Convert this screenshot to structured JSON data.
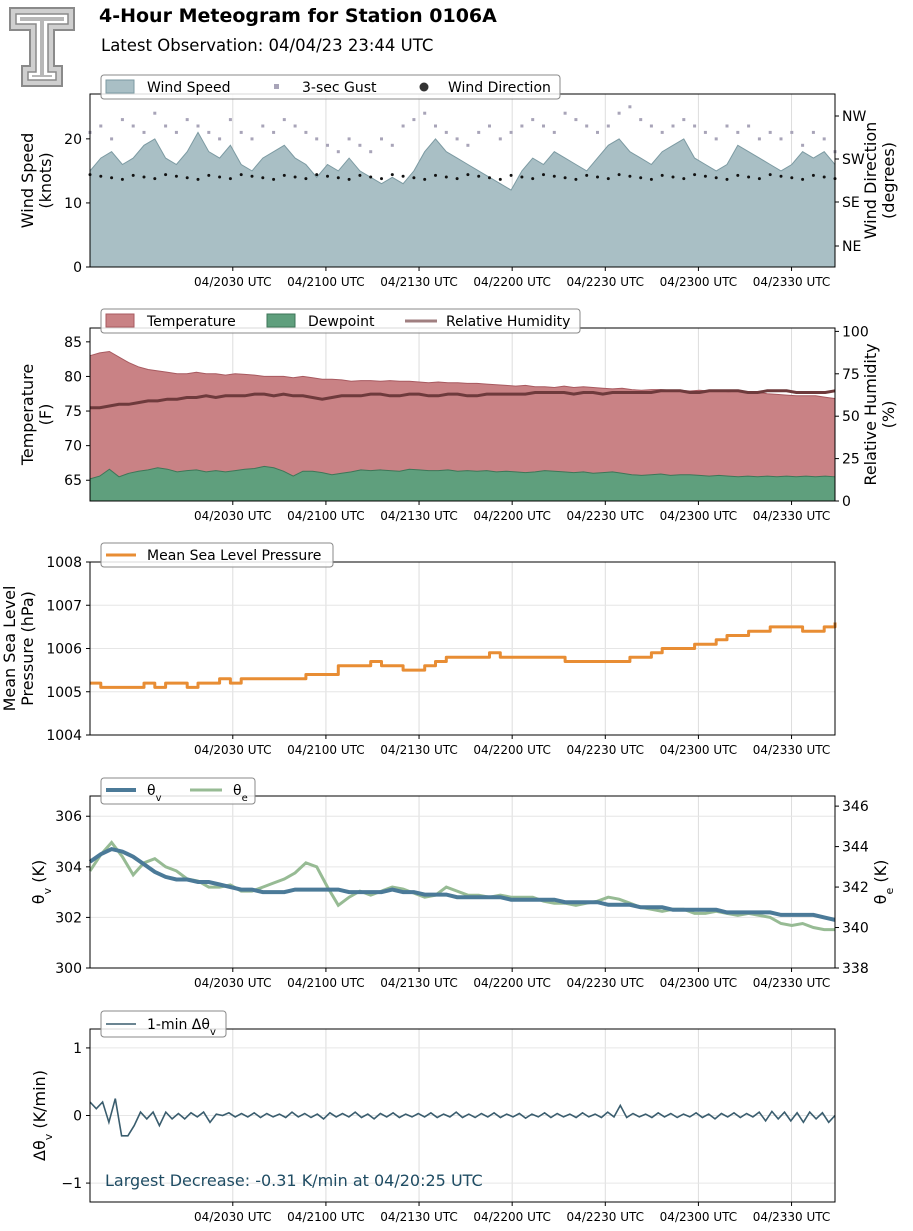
{
  "header": {
    "title": "4-Hour Meteogram for Station 0106A",
    "subtitle": "Latest Observation: 04/04/23 23:44 UTC"
  },
  "colors": {
    "wind_fill": "#a9bfc5",
    "wind_edge": "#7c9aa2",
    "gust": "#a8a4b8",
    "direction": "#111111",
    "temp_fill": "#c98285",
    "temp_edge": "#a85a60",
    "dew_fill": "#5f9f7d",
    "dew_edge": "#3e7658",
    "rh": "#6e3a3c",
    "rh_legend": "#a07f80",
    "pressure": "#e88d34",
    "theta_v": "#4b7a98",
    "theta_e": "#97bb94",
    "dtheta": "#3a5d6e",
    "annotation": "#1f4c63"
  },
  "chart_data": [
    {
      "type": "area",
      "panel": "wind",
      "x_ticks": [
        "04/2030 UTC",
        "04/2100 UTC",
        "04/2130 UTC",
        "04/2200 UTC",
        "04/2230 UTC",
        "04/2300 UTC",
        "04/2330 UTC"
      ],
      "x_range_utc": [
        "19:44",
        "23:44"
      ],
      "ylabel": "Wind Speed\n(knots)",
      "ylim": [
        0,
        27
      ],
      "yticks": [
        "0",
        "10",
        "20"
      ],
      "y2label": "Wind Direction\n(degrees)",
      "y2_ticks": [
        "NE",
        "SE",
        "SW",
        "NW"
      ],
      "legend": [
        "Wind Speed",
        "3-sec Gust",
        "Wind Direction"
      ],
      "legend_position": "top-left",
      "series": [
        {
          "name": "Wind Speed",
          "kind": "area",
          "unit": "knots",
          "step_minutes": 5,
          "values": [
            15,
            17,
            18,
            16,
            17,
            19,
            20,
            17,
            16,
            18,
            21,
            18,
            17,
            19,
            16,
            15,
            17,
            18,
            19,
            17,
            16,
            14,
            16,
            15,
            17,
            15,
            14,
            13,
            14,
            13,
            15,
            18,
            20,
            18,
            17,
            16,
            15,
            14,
            13,
            12,
            15,
            17,
            16,
            18,
            17,
            16,
            15,
            17,
            19,
            20,
            18,
            17,
            16,
            18,
            19,
            20,
            17,
            16,
            15,
            16,
            19,
            18,
            17,
            16,
            15,
            16,
            18,
            17,
            18,
            16
          ]
        },
        {
          "name": "3-sec Gust",
          "kind": "points",
          "unit": "knots",
          "step_minutes": 5,
          "values": [
            21,
            22,
            20,
            23,
            22,
            21,
            24,
            22,
            21,
            23,
            22,
            21,
            20,
            23,
            21,
            20,
            22,
            21,
            23,
            22,
            21,
            20,
            19,
            18,
            20,
            19,
            18,
            20,
            19,
            22,
            23,
            24,
            22,
            21,
            20,
            19,
            21,
            22,
            20,
            21,
            22,
            23,
            22,
            21,
            24,
            23,
            22,
            21,
            22,
            24,
            25,
            23,
            22,
            21,
            22,
            23,
            22,
            21,
            20,
            22,
            21,
            22,
            20,
            21,
            20,
            21,
            19,
            21,
            20,
            18
          ]
        },
        {
          "name": "Wind Direction",
          "kind": "points",
          "unit": "compass",
          "step_minutes": 5,
          "values": [
            "S",
            "S",
            "S",
            "S",
            "S",
            "S",
            "S",
            "S",
            "S",
            "S",
            "S",
            "S",
            "S",
            "S",
            "S",
            "S",
            "S",
            "S",
            "S",
            "S",
            "S",
            "S",
            "S",
            "S",
            "S",
            "S",
            "S",
            "S",
            "S",
            "S",
            "S",
            "S",
            "S",
            "S",
            "S",
            "S",
            "S",
            "S",
            "S",
            "S",
            "S",
            "S",
            "S",
            "S",
            "S",
            "S",
            "S",
            "S",
            "S",
            "S",
            "S",
            "S",
            "S",
            "S",
            "S",
            "S",
            "S",
            "S",
            "S",
            "S",
            "S",
            "S",
            "S",
            "S",
            "S",
            "S",
            "S",
            "S",
            "S",
            "S"
          ]
        }
      ]
    },
    {
      "type": "area",
      "panel": "temperature",
      "x_ticks": [
        "04/2030 UTC",
        "04/2100 UTC",
        "04/2130 UTC",
        "04/2200 UTC",
        "04/2230 UTC",
        "04/2300 UTC",
        "04/2330 UTC"
      ],
      "ylabel": "Temperature\n(F)",
      "ylim": [
        62,
        87
      ],
      "yticks": [
        "65",
        "70",
        "75",
        "80",
        "85"
      ],
      "y2label": "Relative Humidity\n(%)",
      "y2lim": [
        0,
        102
      ],
      "y2ticks": [
        "0",
        "25",
        "50",
        "75",
        "100"
      ],
      "legend": [
        "Temperature",
        "Dewpoint",
        "Relative Humidity"
      ],
      "legend_position": "top-left",
      "series": [
        {
          "name": "Temperature",
          "unit": "F",
          "step_minutes": 10,
          "values": [
            83,
            83.4,
            83.6,
            82.8,
            82,
            81.4,
            81,
            80.8,
            80.6,
            80.4,
            80.4,
            80.6,
            80.4,
            80.4,
            80.2,
            80.4,
            80.3,
            80.2,
            80,
            80,
            80,
            79.8,
            80,
            79.8,
            79.6,
            79.6,
            79.5,
            79.3,
            79.4,
            79.4,
            79.3,
            79.4,
            79.3,
            79.3,
            79.2,
            79.1,
            79.2,
            79.1,
            79.1,
            79,
            79,
            78.9,
            78.8,
            78.7,
            78.6,
            78.7,
            78.5,
            78.5,
            78.4,
            78.6,
            78.4,
            78.5,
            78.4,
            78.3,
            78.2,
            78.3,
            78.1,
            78,
            78.1,
            78.1,
            78,
            78,
            77.9,
            78,
            77.9,
            77.9,
            77.8,
            77.9,
            77.8,
            77.7,
            77.5,
            77.4,
            77.3,
            77.2,
            77.2,
            77.2,
            77,
            76.8
          ]
        },
        {
          "name": "Dewpoint",
          "unit": "F",
          "step_minutes": 10,
          "values": [
            65.2,
            65.6,
            66.6,
            65.5,
            66,
            66.3,
            66.5,
            66.8,
            66.6,
            66.2,
            66.4,
            66.5,
            66.2,
            66.4,
            66.2,
            66.4,
            66.6,
            66.7,
            67,
            66.8,
            66.3,
            65.6,
            66.3,
            66.3,
            66.1,
            65.8,
            66,
            66.2,
            66.5,
            66.4,
            66.5,
            66.4,
            66.3,
            66.6,
            66.5,
            66.4,
            66.4,
            66.5,
            66.3,
            66.4,
            66.3,
            66.4,
            66.2,
            66.3,
            66.2,
            66.1,
            66.2,
            66.4,
            66.3,
            66.2,
            66.1,
            66.2,
            66,
            66.1,
            66.2,
            66,
            65.8,
            65.7,
            65.8,
            65.9,
            65.7,
            65.8,
            65.8,
            65.7,
            65.6,
            65.7,
            65.6,
            65.5,
            65.6,
            65.5,
            65.6,
            65.5,
            65.6,
            65.5,
            65.6,
            65.5,
            65.6,
            65.5
          ]
        },
        {
          "name": "Relative Humidity",
          "unit": "%",
          "step_minutes": 10,
          "values": [
            55,
            55,
            56,
            57,
            57,
            58,
            59,
            59,
            60,
            60,
            61,
            61,
            62,
            61,
            62,
            62,
            62,
            63,
            63,
            62,
            63,
            62,
            62,
            61,
            60,
            61,
            62,
            62,
            62,
            63,
            63,
            62,
            62,
            63,
            63,
            62,
            62,
            63,
            63,
            62,
            62,
            63,
            63,
            63,
            63,
            63,
            64,
            64,
            64,
            64,
            63,
            64,
            64,
            63,
            64,
            64,
            64,
            64,
            64,
            65,
            65,
            65,
            64,
            64,
            65,
            65,
            65,
            65,
            64,
            64,
            65,
            65,
            65,
            64,
            64,
            64,
            64,
            65
          ]
        }
      ]
    },
    {
      "type": "line",
      "panel": "pressure",
      "x_ticks": [
        "04/2030 UTC",
        "04/2100 UTC",
        "04/2130 UTC",
        "04/2200 UTC",
        "04/2230 UTC",
        "04/2300 UTC",
        "04/2330 UTC"
      ],
      "ylabel": "Mean Sea Level\nPressure (hPa)",
      "ylim": [
        1004,
        1008
      ],
      "yticks": [
        "1004",
        "1005",
        "1006",
        "1007",
        "1008"
      ],
      "legend": [
        "Mean Sea Level Pressure"
      ],
      "legend_position": "top-left",
      "series": [
        {
          "name": "Mean Sea Level Pressure",
          "unit": "hPa",
          "step_minutes": 5,
          "values": [
            1005.2,
            1005.1,
            1005.1,
            1005.1,
            1005.1,
            1005.2,
            1005.1,
            1005.2,
            1005.2,
            1005.1,
            1005.2,
            1005.2,
            1005.3,
            1005.2,
            1005.3,
            1005.3,
            1005.3,
            1005.3,
            1005.3,
            1005.3,
            1005.4,
            1005.4,
            1005.4,
            1005.6,
            1005.6,
            1005.6,
            1005.7,
            1005.6,
            1005.6,
            1005.5,
            1005.5,
            1005.6,
            1005.7,
            1005.8,
            1005.8,
            1005.8,
            1005.8,
            1005.9,
            1005.8,
            1005.8,
            1005.8,
            1005.8,
            1005.8,
            1005.8,
            1005.7,
            1005.7,
            1005.7,
            1005.7,
            1005.7,
            1005.7,
            1005.8,
            1005.8,
            1005.9,
            1006.0,
            1006.0,
            1006.0,
            1006.1,
            1006.1,
            1006.2,
            1006.3,
            1006.3,
            1006.4,
            1006.4,
            1006.5,
            1006.5,
            1006.5,
            1006.4,
            1006.4,
            1006.5,
            1006.6
          ]
        }
      ]
    },
    {
      "type": "line",
      "panel": "theta",
      "x_ticks": [
        "04/2030 UTC",
        "04/2100 UTC",
        "04/2130 UTC",
        "04/2200 UTC",
        "04/2230 UTC",
        "04/2300 UTC",
        "04/2330 UTC"
      ],
      "ylabel": "θv (K)",
      "ylim": [
        300,
        306.8
      ],
      "yticks": [
        "300",
        "302",
        "304",
        "306"
      ],
      "y2label": "θe (K)",
      "y2lim": [
        338,
        346.5
      ],
      "y2ticks": [
        "338",
        "340",
        "342",
        "344",
        "346"
      ],
      "legend": [
        "θv",
        "θe"
      ],
      "legend_position": "top-left",
      "series": [
        {
          "name": "θv",
          "axis": "left",
          "unit": "K",
          "step_minutes": 5,
          "values": [
            304.2,
            304.5,
            304.7,
            304.6,
            304.4,
            304.1,
            303.8,
            303.6,
            303.5,
            303.5,
            303.4,
            303.4,
            303.3,
            303.2,
            303.1,
            303.1,
            303,
            303,
            303,
            303.1,
            303.1,
            303.1,
            303.1,
            303.1,
            303,
            303,
            303,
            303,
            303.1,
            303,
            303,
            302.9,
            302.9,
            302.9,
            302.8,
            302.8,
            302.8,
            302.8,
            302.8,
            302.7,
            302.7,
            302.7,
            302.7,
            302.7,
            302.6,
            302.6,
            302.6,
            302.6,
            302.5,
            302.5,
            302.5,
            302.4,
            302.4,
            302.4,
            302.3,
            302.3,
            302.3,
            302.3,
            302.3,
            302.2,
            302.2,
            302.2,
            302.2,
            302.2,
            302.1,
            302.1,
            302.1,
            302.1,
            302.0,
            301.9
          ]
        },
        {
          "name": "θe",
          "axis": "right",
          "unit": "K",
          "step_minutes": 5,
          "values": [
            342.8,
            343.6,
            344.2,
            343.5,
            342.6,
            343.2,
            343.4,
            343,
            342.8,
            342.4,
            342.3,
            342.0,
            342.0,
            342.1,
            341.8,
            341.8,
            342.0,
            342.2,
            342.4,
            342.7,
            343.2,
            343.0,
            342.0,
            341.1,
            341.5,
            341.8,
            341.6,
            341.8,
            342.0,
            341.9,
            341.7,
            341.5,
            341.6,
            342.0,
            341.8,
            341.6,
            341.6,
            341.5,
            341.6,
            341.5,
            341.5,
            341.5,
            341.3,
            341.2,
            341.2,
            341.1,
            341.2,
            341.3,
            341.5,
            341.4,
            341.2,
            341.0,
            340.9,
            340.8,
            340.9,
            340.9,
            340.7,
            340.7,
            340.8,
            340.7,
            340.6,
            340.7,
            340.6,
            340.5,
            340.2,
            340.1,
            340.2,
            340.0,
            339.9,
            339.9
          ]
        }
      ]
    },
    {
      "type": "line",
      "panel": "delta_theta",
      "x_ticks": [
        "04/2030 UTC",
        "04/2100 UTC",
        "04/2130 UTC",
        "04/2200 UTC",
        "04/2230 UTC",
        "04/2300 UTC",
        "04/2330 UTC"
      ],
      "ylabel": "Δθv (K/min)",
      "ylim": [
        -1.28,
        1.28
      ],
      "yticks": [
        "−1",
        "0",
        "1"
      ],
      "legend": [
        "1-min Δθv"
      ],
      "legend_position": "top-left",
      "annotation": "Largest Decrease: -0.31 K/min at 04/20:25 UTC",
      "series": [
        {
          "name": "1-min Δθv",
          "unit": "K/min",
          "step_minutes": 2,
          "values": [
            0.2,
            0.1,
            0.2,
            -0.1,
            0.25,
            -0.3,
            -0.3,
            -0.15,
            0.05,
            -0.05,
            0.05,
            -0.15,
            0.05,
            -0.05,
            0.03,
            -0.05,
            0.04,
            -0.02,
            0.05,
            -0.1,
            0.02,
            0.0,
            0.04,
            -0.02,
            0.03,
            -0.02,
            0.04,
            -0.03,
            0.03,
            -0.02,
            0.02,
            -0.03,
            0.05,
            -0.02,
            0.03,
            -0.03,
            0.02,
            -0.05,
            0.04,
            -0.02,
            0.03,
            -0.02,
            0.05,
            -0.03,
            0.02,
            -0.05,
            0.03,
            -0.02,
            0.04,
            -0.03,
            0.02,
            -0.02,
            0.03,
            -0.02,
            0.04,
            -0.03,
            0.02,
            -0.02,
            0.05,
            -0.03,
            0.02,
            -0.03,
            0.03,
            -0.02,
            0.04,
            -0.03,
            0.02,
            -0.02,
            0.03,
            -0.04,
            0.02,
            -0.02,
            0.04,
            -0.03,
            0.03,
            -0.02,
            0.02,
            -0.03,
            0.04,
            -0.02,
            0.02,
            -0.03,
            0.05,
            -0.02,
            0.15,
            -0.03,
            0.03,
            -0.02,
            0.02,
            -0.03,
            0.04,
            -0.02,
            0.03,
            -0.03,
            0.02,
            -0.02,
            0.04,
            -0.03,
            0.02,
            -0.05,
            0.03,
            -0.02,
            0.04,
            -0.03,
            0.03,
            -0.02,
            0.05,
            -0.08,
            0.06,
            -0.05,
            0.05,
            -0.08,
            0.04,
            -0.1,
            0.05,
            -0.05,
            0.04,
            -0.1,
            0.0
          ]
        }
      ]
    }
  ]
}
